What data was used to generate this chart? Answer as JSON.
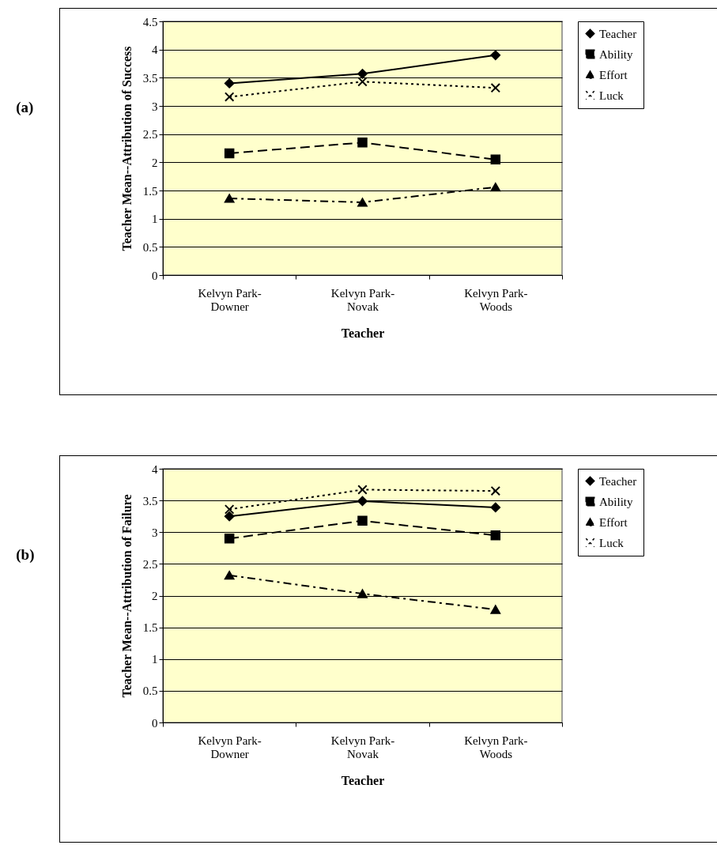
{
  "chart_data": [
    {
      "type": "line",
      "annotations": [
        "(a)"
      ],
      "xlabel": "Teacher",
      "ylabel": "Teacher Mean--Attribution of Success",
      "categories": [
        "Kelvyn Park-Downer",
        "Kelvyn Park-Novak",
        "Kelvyn Park-Woods"
      ],
      "ylim": [
        0,
        4.5
      ],
      "yticks": [
        0,
        0.5,
        1,
        1.5,
        2,
        2.5,
        3,
        3.5,
        4,
        4.5
      ],
      "grid": "y",
      "legend": "right",
      "series": [
        {
          "name": "Teacher",
          "color": "#000000",
          "marker": "diamond",
          "line_style": "solid",
          "values": [
            3.4,
            3.57,
            3.9
          ]
        },
        {
          "name": "Ability",
          "color": "#000000",
          "marker": "square",
          "line_style": "dashed",
          "values": [
            2.16,
            2.35,
            2.05
          ]
        },
        {
          "name": "Effort",
          "color": "#000000",
          "marker": "triangle",
          "line_style": "dashdot",
          "values": [
            1.36,
            1.29,
            1.56
          ]
        },
        {
          "name": "Luck",
          "color": "#000000",
          "marker": "cross",
          "line_style": "dotted",
          "values": [
            3.16,
            3.43,
            3.32
          ]
        }
      ]
    },
    {
      "type": "line",
      "annotations": [
        "(b)"
      ],
      "xlabel": "Teacher",
      "ylabel": "Teacher Mean--Attribution of Failure",
      "categories": [
        "Kelvyn Park-Downer",
        "Kelvyn Park-Novak",
        "Kelvyn Park-Woods"
      ],
      "ylim": [
        0,
        4
      ],
      "yticks": [
        0,
        0.5,
        1,
        1.5,
        2,
        2.5,
        3,
        3.5,
        4
      ],
      "grid": "y",
      "legend": "right",
      "series": [
        {
          "name": "Teacher",
          "color": "#000000",
          "marker": "diamond",
          "line_style": "solid",
          "values": [
            3.25,
            3.49,
            3.39
          ]
        },
        {
          "name": "Ability",
          "color": "#000000",
          "marker": "square",
          "line_style": "dashed",
          "values": [
            2.9,
            3.18,
            2.95
          ]
        },
        {
          "name": "Effort",
          "color": "#000000",
          "marker": "triangle",
          "line_style": "dashdot",
          "values": [
            2.32,
            2.03,
            1.78
          ]
        },
        {
          "name": "Luck",
          "color": "#000000",
          "marker": "cross",
          "line_style": "dotted",
          "values": [
            3.36,
            3.67,
            3.65
          ]
        }
      ]
    }
  ]
}
